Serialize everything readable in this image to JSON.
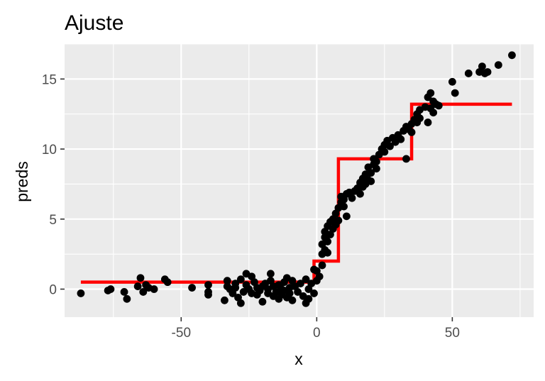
{
  "chart_data": {
    "type": "scatter",
    "title": "Ajuste",
    "xlabel": "x",
    "ylabel": "preds",
    "xlim": [
      -93,
      80
    ],
    "ylim": [
      -2,
      17.5
    ],
    "x_ticks": [
      -50,
      0,
      50
    ],
    "y_ticks": [
      0,
      5,
      10,
      15
    ],
    "grid": true,
    "panel_color": "#ebebeb",
    "point_color": "#000000",
    "line_color": "#ff0000",
    "points": [
      [
        -87,
        -0.3
      ],
      [
        -77,
        -0.1
      ],
      [
        -76,
        0.0
      ],
      [
        -71,
        -0.2
      ],
      [
        -70,
        -0.7
      ],
      [
        -66,
        0.2
      ],
      [
        -65,
        0.8
      ],
      [
        -64,
        -0.2
      ],
      [
        -63,
        0.3
      ],
      [
        -62,
        0.1
      ],
      [
        -60,
        0.0
      ],
      [
        -56,
        0.7
      ],
      [
        -55,
        0.5
      ],
      [
        -46,
        0.1
      ],
      [
        -40,
        0.3
      ],
      [
        -40,
        -0.2
      ],
      [
        -40,
        -0.4
      ],
      [
        -34,
        -0.8
      ],
      [
        -33,
        0.6
      ],
      [
        -33,
        0.2
      ],
      [
        -32,
        0.0
      ],
      [
        -31,
        -0.3
      ],
      [
        -30,
        0.4
      ],
      [
        -30,
        0.1
      ],
      [
        -29,
        -0.6
      ],
      [
        -28,
        0.7
      ],
      [
        -28,
        -1.0
      ],
      [
        -27,
        -0.2
      ],
      [
        -26,
        1.1
      ],
      [
        -26,
        0.3
      ],
      [
        -25,
        0.0
      ],
      [
        -24,
        -0.3
      ],
      [
        -24,
        0.9
      ],
      [
        -23,
        0.5
      ],
      [
        -22,
        0.1
      ],
      [
        -22,
        -0.4
      ],
      [
        -21,
        -0.1
      ],
      [
        -20,
        0.2
      ],
      [
        -20,
        -0.9
      ],
      [
        -19,
        0.4
      ],
      [
        -18,
        0.0
      ],
      [
        -18,
        -0.3
      ],
      [
        -17,
        1.1
      ],
      [
        -17,
        0.6
      ],
      [
        -16,
        0.2
      ],
      [
        -16,
        -0.5
      ],
      [
        -15,
        -0.2
      ],
      [
        -14,
        0.3
      ],
      [
        -14,
        -0.7
      ],
      [
        -13,
        0.0
      ],
      [
        -13,
        -0.4
      ],
      [
        -12,
        0.5
      ],
      [
        -12,
        -0.1
      ],
      [
        -11,
        0.8
      ],
      [
        -11,
        -0.6
      ],
      [
        -10,
        0.1
      ],
      [
        -10,
        -0.3
      ],
      [
        -9,
        0.6
      ],
      [
        -9,
        -0.8
      ],
      [
        -8,
        0.2
      ],
      [
        -7,
        -0.2
      ],
      [
        -6,
        0.4
      ],
      [
        -5,
        -0.5
      ],
      [
        -4,
        -1.0
      ],
      [
        -4,
        0.7
      ],
      [
        -3,
        0.0
      ],
      [
        -3,
        -0.7
      ],
      [
        -2,
        0.4
      ],
      [
        -1,
        -0.3
      ],
      [
        -1,
        1.4
      ],
      [
        0,
        0.6
      ],
      [
        0,
        1.3
      ],
      [
        1,
        0.9
      ],
      [
        2,
        1.7
      ],
      [
        2,
        2.5
      ],
      [
        2,
        3.2
      ],
      [
        3,
        2.8
      ],
      [
        3,
        3.7
      ],
      [
        3,
        4.1
      ],
      [
        4,
        3.4
      ],
      [
        4,
        4.5
      ],
      [
        4,
        2.6
      ],
      [
        5,
        4.8
      ],
      [
        5,
        3.9
      ],
      [
        6,
        4.3
      ],
      [
        6,
        5.0
      ],
      [
        7,
        4.6
      ],
      [
        7,
        5.4
      ],
      [
        8,
        4.9
      ],
      [
        8,
        5.8
      ],
      [
        9,
        6.2
      ],
      [
        9,
        6.6
      ],
      [
        10,
        6.4
      ],
      [
        10,
        5.9
      ],
      [
        11,
        6.8
      ],
      [
        11,
        5.2
      ],
      [
        12,
        6.9
      ],
      [
        13,
        6.5
      ],
      [
        14,
        7.0
      ],
      [
        15,
        7.2
      ],
      [
        16,
        7.6
      ],
      [
        16,
        6.8
      ],
      [
        17,
        7.9
      ],
      [
        17,
        7.3
      ],
      [
        18,
        8.2
      ],
      [
        18,
        7.5
      ],
      [
        19,
        7.8
      ],
      [
        19,
        8.7
      ],
      [
        20,
        8.3
      ],
      [
        20,
        7.7
      ],
      [
        21,
        8.9
      ],
      [
        21,
        9.3
      ],
      [
        22,
        9.1
      ],
      [
        22,
        8.6
      ],
      [
        23,
        9.6
      ],
      [
        24,
        10.0
      ],
      [
        25,
        10.3
      ],
      [
        25,
        9.8
      ],
      [
        26,
        10.6
      ],
      [
        27,
        10.2
      ],
      [
        28,
        10.8
      ],
      [
        29,
        10.5
      ],
      [
        30,
        11.0
      ],
      [
        31,
        10.7
      ],
      [
        32,
        11.3
      ],
      [
        33,
        11.6
      ],
      [
        33,
        9.3
      ],
      [
        34,
        11.4
      ],
      [
        35,
        11.8
      ],
      [
        35,
        11.2
      ],
      [
        36,
        12.1
      ],
      [
        37,
        12.5
      ],
      [
        37,
        11.9
      ],
      [
        38,
        12.8
      ],
      [
        38,
        12.2
      ],
      [
        40,
        13.0
      ],
      [
        41,
        13.7
      ],
      [
        41,
        11.9
      ],
      [
        42,
        14.0
      ],
      [
        42,
        12.9
      ],
      [
        43,
        13.4
      ],
      [
        43,
        12.6
      ],
      [
        44,
        13.2
      ],
      [
        45,
        13.1
      ],
      [
        50,
        14.8
      ],
      [
        51,
        14.0
      ],
      [
        56,
        15.4
      ],
      [
        60,
        15.5
      ],
      [
        61,
        15.9
      ],
      [
        62,
        15.4
      ],
      [
        63,
        15.5
      ],
      [
        67,
        16.0
      ],
      [
        72,
        16.7
      ]
    ],
    "fit_line": [
      [
        -87,
        0.5
      ],
      [
        -1,
        0.5
      ],
      [
        -1,
        2.0
      ],
      [
        8,
        2.0
      ],
      [
        8,
        9.3
      ],
      [
        35,
        9.3
      ],
      [
        35,
        13.2
      ],
      [
        72,
        13.2
      ]
    ]
  }
}
